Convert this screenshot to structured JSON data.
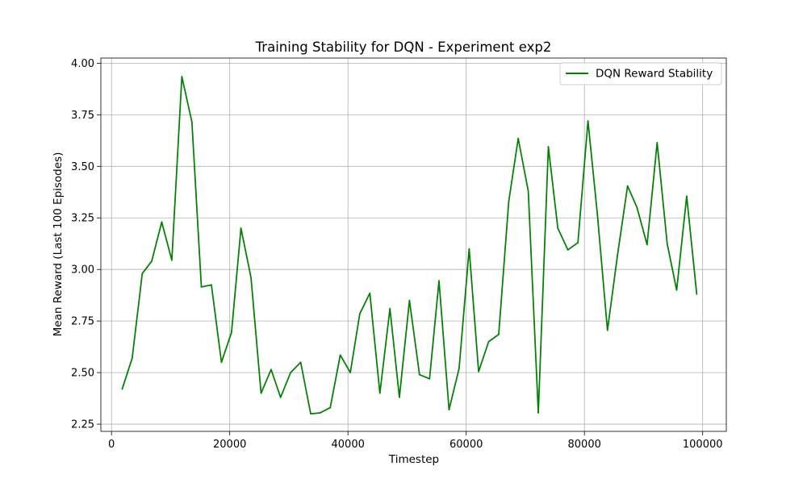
{
  "chart_data": {
    "type": "line",
    "title": "Training Stability for DQN - Experiment exp2",
    "xlabel": "Timestep",
    "ylabel": "Mean Reward (Last 100 Episodes)",
    "xlim": [
      -1800,
      104000
    ],
    "ylim": [
      2.215,
      4.025
    ],
    "xticks": [
      0,
      20000,
      40000,
      60000,
      80000,
      100000
    ],
    "xtick_labels": [
      "0",
      "20000",
      "40000",
      "60000",
      "80000",
      "100000"
    ],
    "yticks": [
      2.25,
      2.5,
      2.75,
      3.0,
      3.25,
      3.5,
      3.75,
      4.0
    ],
    "ytick_labels": [
      "2.25",
      "2.50",
      "2.75",
      "3.00",
      "3.25",
      "3.50",
      "3.75",
      "4.00"
    ],
    "grid": true,
    "legend_position": "top-right",
    "series": [
      {
        "name": "DQN Reward Stability",
        "color": "#008000",
        "x": [
          1800,
          3500,
          5200,
          6800,
          8500,
          10200,
          11900,
          13600,
          15200,
          16900,
          18600,
          20300,
          21900,
          23600,
          25300,
          27000,
          28600,
          30300,
          32000,
          33700,
          35300,
          37000,
          38700,
          40400,
          42000,
          43700,
          45400,
          47100,
          48700,
          50400,
          52100,
          53800,
          55400,
          57100,
          58800,
          60500,
          62100,
          63800,
          65500,
          67200,
          68800,
          70500,
          72200,
          73900,
          75500,
          77200,
          78900,
          80600,
          82200,
          83900,
          85600,
          87300,
          88900,
          90600,
          92300,
          94000,
          95600,
          97300,
          99000
        ],
        "y": [
          2.42,
          2.57,
          2.98,
          3.04,
          3.23,
          3.045,
          3.935,
          3.715,
          2.915,
          2.925,
          2.55,
          2.695,
          3.2,
          2.96,
          2.4,
          2.515,
          2.38,
          2.5,
          2.55,
          2.3,
          2.305,
          2.33,
          2.585,
          2.5,
          2.785,
          2.885,
          2.4,
          2.81,
          2.38,
          2.85,
          2.49,
          2.47,
          2.945,
          2.32,
          2.52,
          3.1,
          2.505,
          2.65,
          2.685,
          3.33,
          3.635,
          3.38,
          2.305,
          3.595,
          3.2,
          3.095,
          3.13,
          3.72,
          3.265,
          2.705,
          3.07,
          3.405,
          3.3,
          3.12,
          3.615,
          3.125,
          2.9,
          3.355,
          2.88
        ]
      }
    ]
  }
}
